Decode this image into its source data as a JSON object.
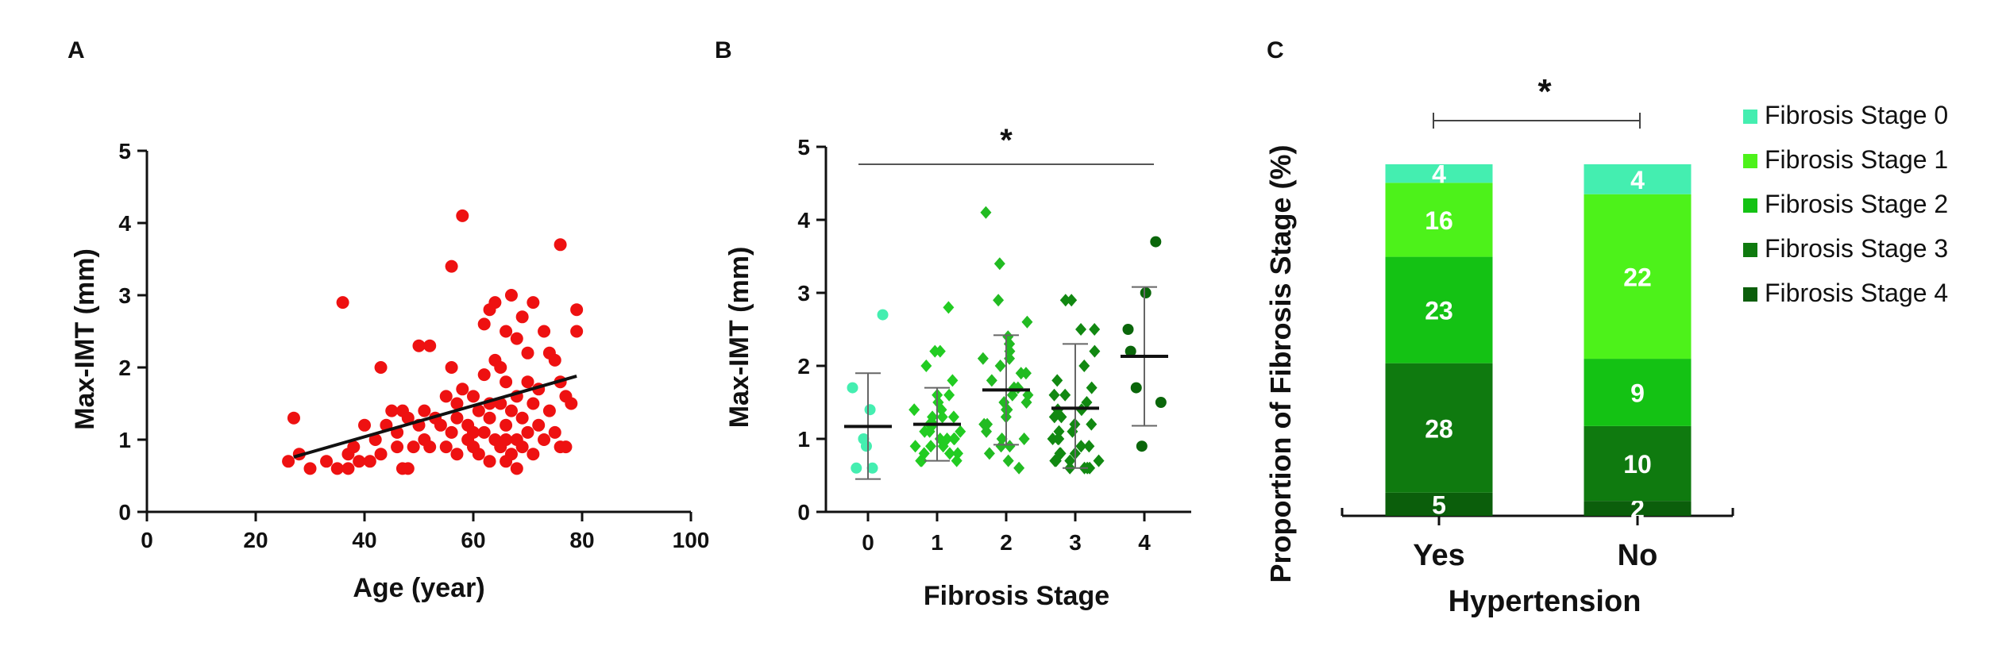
{
  "chart_data": [
    {
      "panel": "A",
      "type": "scatter",
      "xlabel": "Age (year)",
      "ylabel": "Max-IMT (mm)",
      "xlim": [
        0,
        100
      ],
      "ylim": [
        0,
        5
      ],
      "xticks": [
        0,
        20,
        40,
        60,
        80,
        100
      ],
      "yticks": [
        0,
        1,
        2,
        3,
        4,
        5
      ],
      "color": "#ee1111",
      "trendline": {
        "x": [
          27,
          79
        ],
        "y": [
          0.76,
          1.88
        ]
      },
      "points": [
        [
          26,
          0.7
        ],
        [
          27,
          1.3
        ],
        [
          28,
          0.8
        ],
        [
          30,
          0.6
        ],
        [
          33,
          0.7
        ],
        [
          35,
          0.6
        ],
        [
          36,
          2.9
        ],
        [
          37,
          0.6
        ],
        [
          37,
          0.8
        ],
        [
          38,
          0.9
        ],
        [
          39,
          0.7
        ],
        [
          40,
          1.2
        ],
        [
          41,
          0.7
        ],
        [
          42,
          1.0
        ],
        [
          43,
          2.0
        ],
        [
          43,
          0.8
        ],
        [
          44,
          1.2
        ],
        [
          45,
          1.4
        ],
        [
          46,
          0.9
        ],
        [
          46,
          1.1
        ],
        [
          47,
          0.6
        ],
        [
          47,
          1.4
        ],
        [
          48,
          0.6
        ],
        [
          48,
          1.3
        ],
        [
          49,
          0.9
        ],
        [
          50,
          1.2
        ],
        [
          50,
          2.3
        ],
        [
          51,
          1.0
        ],
        [
          51,
          1.4
        ],
        [
          52,
          2.3
        ],
        [
          52,
          0.9
        ],
        [
          53,
          1.3
        ],
        [
          54,
          1.2
        ],
        [
          55,
          1.6
        ],
        [
          55,
          0.9
        ],
        [
          56,
          1.1
        ],
        [
          56,
          3.4
        ],
        [
          56,
          2.0
        ],
        [
          57,
          1.5
        ],
        [
          57,
          0.8
        ],
        [
          57,
          1.3
        ],
        [
          58,
          4.1
        ],
        [
          58,
          1.7
        ],
        [
          59,
          1.0
        ],
        [
          59,
          1.2
        ],
        [
          60,
          1.6
        ],
        [
          60,
          0.9
        ],
        [
          61,
          1.4
        ],
        [
          61,
          0.8
        ],
        [
          62,
          1.1
        ],
        [
          62,
          2.6
        ],
        [
          62,
          1.9
        ],
        [
          63,
          1.3
        ],
        [
          63,
          2.8
        ],
        [
          63,
          0.7
        ],
        [
          64,
          1.0
        ],
        [
          64,
          2.1
        ],
        [
          64,
          2.9
        ],
        [
          65,
          1.5
        ],
        [
          65,
          0.9
        ],
        [
          65,
          2.0
        ],
        [
          66,
          1.2
        ],
        [
          66,
          1.8
        ],
        [
          66,
          2.5
        ],
        [
          67,
          3.0
        ],
        [
          67,
          0.8
        ],
        [
          67,
          1.4
        ],
        [
          68,
          2.4
        ],
        [
          68,
          1.0
        ],
        [
          68,
          1.6
        ],
        [
          69,
          2.7
        ],
        [
          69,
          1.3
        ],
        [
          69,
          0.9
        ],
        [
          70,
          1.8
        ],
        [
          70,
          2.2
        ],
        [
          70,
          1.1
        ],
        [
          71,
          1.5
        ],
        [
          71,
          2.9
        ],
        [
          71,
          0.8
        ],
        [
          72,
          1.2
        ],
        [
          72,
          1.7
        ],
        [
          73,
          2.5
        ],
        [
          73,
          1.0
        ],
        [
          74,
          2.2
        ],
        [
          74,
          1.4
        ],
        [
          75,
          2.1
        ],
        [
          75,
          1.1
        ],
        [
          76,
          3.7
        ],
        [
          76,
          1.8
        ],
        [
          76,
          0.9
        ],
        [
          77,
          1.6
        ],
        [
          77,
          0.9
        ],
        [
          78,
          1.5
        ],
        [
          79,
          2.8
        ],
        [
          79,
          2.5
        ],
        [
          66,
          0.7
        ],
        [
          68,
          0.6
        ],
        [
          60,
          1.1
        ],
        [
          63,
          1.5
        ],
        [
          66,
          1.0
        ]
      ]
    },
    {
      "panel": "B",
      "type": "scatter",
      "xlabel": "Fibrosis Stage",
      "ylabel": "Max-IMT (mm)",
      "ylim": [
        0,
        5
      ],
      "yticks": [
        0,
        1,
        2,
        3,
        4,
        5
      ],
      "significance": "*",
      "groups": [
        {
          "label": "0",
          "color": "#44eeb0",
          "marker": "circle",
          "mean": 1.17,
          "upper": 1.9,
          "lower": 0.45,
          "values": [
            2.7,
            1.7,
            1.4,
            1.0,
            0.9,
            0.6,
            0.6
          ]
        },
        {
          "label": "1",
          "color": "#22cc22",
          "marker": "diamond",
          "mean": 1.2,
          "upper": 1.7,
          "lower": 0.7,
          "values": [
            2.8,
            2.2,
            2.2,
            2.0,
            1.8,
            1.6,
            1.6,
            1.5,
            1.5,
            1.4,
            1.4,
            1.3,
            1.3,
            1.3,
            1.2,
            1.2,
            1.1,
            1.1,
            1.0,
            1.0,
            1.0,
            0.9,
            0.9,
            0.8,
            0.8,
            0.8,
            0.7,
            0.7,
            0.7,
            1.1,
            1.0,
            0.9
          ]
        },
        {
          "label": "2",
          "color": "#22bb22",
          "marker": "diamond",
          "mean": 1.67,
          "upper": 2.42,
          "lower": 0.92,
          "values": [
            4.1,
            3.4,
            2.9,
            2.6,
            2.4,
            2.3,
            2.3,
            2.2,
            2.1,
            2.0,
            1.9,
            1.9,
            1.8,
            1.7,
            1.7,
            1.6,
            1.5,
            1.5,
            1.4,
            1.4,
            1.3,
            1.2,
            1.1,
            1.0,
            1.0,
            0.9,
            0.8,
            0.7,
            0.6,
            2.1,
            1.6,
            1.2,
            0.9
          ]
        },
        {
          "label": "3",
          "color": "#118811",
          "marker": "diamond",
          "mean": 1.42,
          "upper": 2.3,
          "lower": 0.6,
          "values": [
            2.9,
            2.9,
            2.5,
            2.5,
            2.2,
            2.0,
            1.8,
            1.7,
            1.6,
            1.6,
            1.5,
            1.4,
            1.4,
            1.3,
            1.3,
            1.2,
            1.1,
            1.1,
            1.0,
            1.0,
            0.9,
            0.9,
            0.8,
            0.8,
            0.7,
            0.7,
            0.7,
            0.6,
            0.6,
            0.6,
            1.2,
            0.8,
            1.0,
            0.7,
            0.6
          ]
        },
        {
          "label": "4",
          "color": "#0a660a",
          "marker": "circle",
          "mean": 2.13,
          "upper": 3.08,
          "lower": 1.18,
          "values": [
            3.7,
            3.0,
            2.5,
            2.2,
            1.7,
            1.5,
            0.9
          ]
        }
      ]
    },
    {
      "panel": "C",
      "type": "bar",
      "stacked": true,
      "xlabel": "Hypertension",
      "ylabel": "Proportion of  Fibrosis Stage (%)",
      "categories": [
        "Yes",
        "No"
      ],
      "significance": "*",
      "legend_position": "right",
      "series": [
        {
          "name": "Fibrosis Stage 4",
          "color": "#0b5e0b",
          "values": [
            5,
            2
          ]
        },
        {
          "name": "Fibrosis Stage 3",
          "color": "#0f7a0f",
          "values": [
            28,
            10
          ]
        },
        {
          "name": "Fibrosis Stage 2",
          "color": "#14c214",
          "values": [
            23,
            9
          ]
        },
        {
          "name": "Fibrosis Stage 1",
          "color": "#4df21a",
          "values": [
            16,
            22
          ]
        },
        {
          "name": "Fibrosis Stage 0",
          "color": "#44eeb0",
          "values": [
            4,
            4
          ]
        }
      ],
      "legend_order": [
        "Fibrosis Stage 0",
        "Fibrosis Stage 1",
        "Fibrosis Stage 2",
        "Fibrosis Stage 3",
        "Fibrosis Stage 4"
      ]
    }
  ],
  "panel_labels": [
    "A",
    "B",
    "C"
  ]
}
